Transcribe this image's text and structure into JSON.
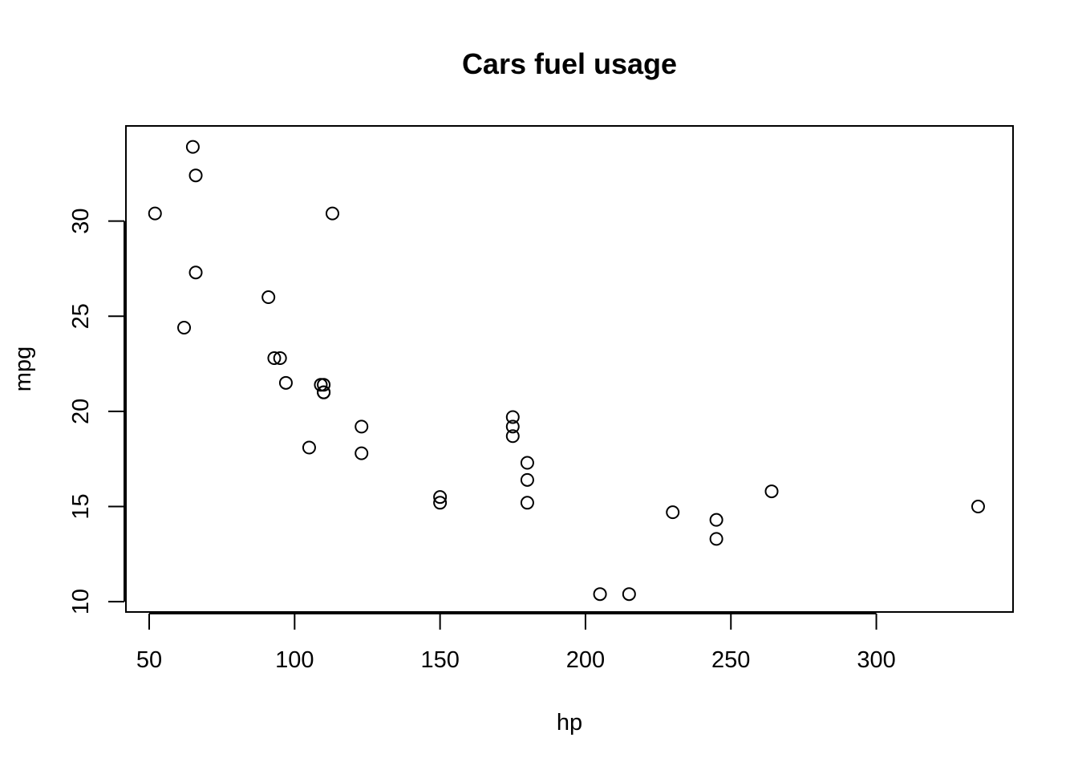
{
  "chart_data": {
    "type": "scatter",
    "title": "Cars fuel usage",
    "xlabel": "hp",
    "ylabel": "mpg",
    "xlim": [
      42,
      347
    ],
    "ylim": [
      9.46,
      35.0
    ],
    "x_ticks": [
      50,
      100,
      150,
      200,
      250,
      300
    ],
    "x_tick_labels": [
      "50",
      "100",
      "150",
      "200",
      "250",
      "300"
    ],
    "y_ticks": [
      10,
      15,
      20,
      25,
      30
    ],
    "y_tick_labels": [
      "10",
      "15",
      "20",
      "25",
      "30"
    ],
    "grid": false,
    "legend": "none",
    "marker": "open-circle",
    "colors": {
      "points": "#000000",
      "frame": "#000000",
      "background": "#ffffff"
    },
    "points": [
      {
        "x": 110,
        "y": 21.0
      },
      {
        "x": 110,
        "y": 21.0
      },
      {
        "x": 93,
        "y": 22.8
      },
      {
        "x": 110,
        "y": 21.4
      },
      {
        "x": 175,
        "y": 18.7
      },
      {
        "x": 105,
        "y": 18.1
      },
      {
        "x": 245,
        "y": 14.3
      },
      {
        "x": 62,
        "y": 24.4
      },
      {
        "x": 95,
        "y": 22.8
      },
      {
        "x": 123,
        "y": 19.2
      },
      {
        "x": 123,
        "y": 17.8
      },
      {
        "x": 180,
        "y": 16.4
      },
      {
        "x": 180,
        "y": 17.3
      },
      {
        "x": 180,
        "y": 15.2
      },
      {
        "x": 205,
        "y": 10.4
      },
      {
        "x": 215,
        "y": 10.4
      },
      {
        "x": 230,
        "y": 14.7
      },
      {
        "x": 66,
        "y": 32.4
      },
      {
        "x": 52,
        "y": 30.4
      },
      {
        "x": 65,
        "y": 33.9
      },
      {
        "x": 97,
        "y": 21.5
      },
      {
        "x": 150,
        "y": 15.5
      },
      {
        "x": 150,
        "y": 15.2
      },
      {
        "x": 245,
        "y": 13.3
      },
      {
        "x": 175,
        "y": 19.2
      },
      {
        "x": 66,
        "y": 27.3
      },
      {
        "x": 91,
        "y": 26.0
      },
      {
        "x": 113,
        "y": 30.4
      },
      {
        "x": 264,
        "y": 15.8
      },
      {
        "x": 175,
        "y": 19.7
      },
      {
        "x": 335,
        "y": 15.0
      },
      {
        "x": 109,
        "y": 21.4
      }
    ]
  }
}
